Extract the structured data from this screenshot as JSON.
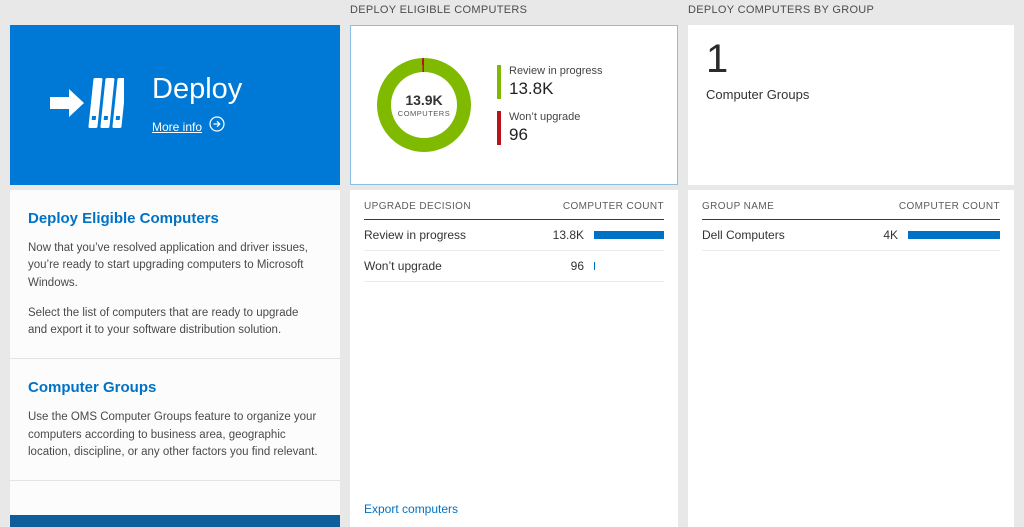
{
  "colors": {
    "tile_blue": "#0079d6",
    "accent": "#0072c6",
    "green": "#7fba00",
    "red": "#ba141a",
    "bar_blue": "#0072c6",
    "strip_blue": "#0f5e9c"
  },
  "left": {
    "tile": {
      "title": "Deploy",
      "more_info": "More info"
    },
    "sections": [
      {
        "heading": "Deploy Eligible Computers",
        "para1": "Now that you’ve resolved application and driver issues, you’re ready to start upgrading computers to Microsoft Windows.",
        "para2": "Select the list of computers that are ready to upgrade and export it to your software distribution solution."
      },
      {
        "heading": "Computer Groups",
        "para1": "Use the OMS Computer Groups feature to organize your computers according to business area, geographic location, discipline, or any other factors you find relevant."
      }
    ]
  },
  "middle": {
    "header": "DEPLOY ELIGIBLE COMPUTERS",
    "donut": {
      "center_value": "13.9K",
      "center_label": "COMPUTERS",
      "legend": [
        {
          "label": "Review in progress",
          "value": "13.8K",
          "color": "#7fba00",
          "pct": 99.3
        },
        {
          "label": "Won’t upgrade",
          "value": "96",
          "color": "#ba141a",
          "pct": 0.7
        }
      ]
    },
    "table": {
      "col1": "UPGRADE DECISION",
      "col2": "COMPUTER COUNT",
      "rows": [
        {
          "label": "Review in progress",
          "value": "13.8K",
          "bar_pct": 100
        },
        {
          "label": "Won’t upgrade",
          "value": "96",
          "bar_pct": 2
        }
      ]
    },
    "export_link": "Export computers"
  },
  "right": {
    "header": "DEPLOY COMPUTERS BY GROUP",
    "summary": {
      "value": "1",
      "label": "Computer Groups"
    },
    "table": {
      "col1": "GROUP NAME",
      "col2": "COMPUTER COUNT",
      "rows": [
        {
          "label": "Dell Computers",
          "value": "4K",
          "bar_pct": 100
        }
      ]
    }
  }
}
